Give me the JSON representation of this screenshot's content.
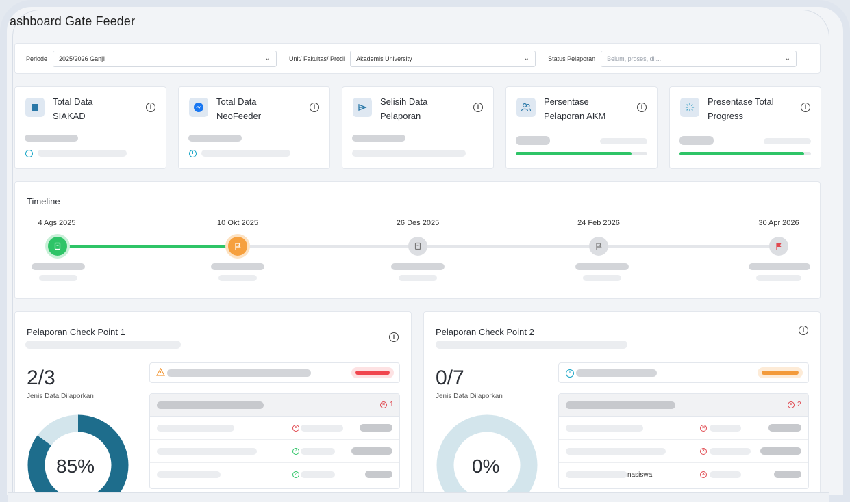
{
  "page": {
    "title": "ashboard Gate Feeder"
  },
  "filters": {
    "periode_label": "Periode",
    "periode_value": "2025/2026 Ganjil",
    "unit_label": "Unit/ Fakultas/ Prodi",
    "unit_value": "Akademis University",
    "status_label": "Status Pelaporan",
    "status_placeholder": "Belum, proses, dll..."
  },
  "stats": [
    {
      "title_line1": "Total Data",
      "title_line2": "SIAKAD",
      "icon": "building-columns-icon"
    },
    {
      "title_line1": "Total Data",
      "title_line2": "NeoFeeder",
      "icon": "neofeeder-logo-icon"
    },
    {
      "title_line1": "Selisih Data",
      "title_line2": "Pelaporan",
      "icon": "send-lines-icon"
    },
    {
      "title_line1": "Persentase",
      "title_line2": "Pelaporan AKM",
      "icon": "users-icon",
      "progress": 0.88
    },
    {
      "title_line1": "Presentase Total",
      "title_line2": "Progress",
      "icon": "loader-icon",
      "progress": 0.95
    }
  ],
  "timeline": {
    "title": "Timeline",
    "nodes": [
      {
        "date": "4 Ags 2025",
        "state": "done",
        "icon": "document-icon"
      },
      {
        "date": "10 Okt 2025",
        "state": "current",
        "icon": "flag-icon"
      },
      {
        "date": "26 Des 2025",
        "state": "pending",
        "icon": "document-icon"
      },
      {
        "date": "24 Feb 2026",
        "state": "pending",
        "icon": "flag-icon"
      },
      {
        "date": "30 Apr 2026",
        "state": "final",
        "icon": "red-flag-icon"
      }
    ]
  },
  "checkpoints": [
    {
      "title": "Pelaporan Check Point 1",
      "ratio": "2/3",
      "subtitle": "Jenis Data Dilaporkan",
      "percent_label": "85%",
      "percent": 0.85,
      "error_count": "1",
      "alert_color": "#f0464e"
    },
    {
      "title": "Pelaporan Check Point 2",
      "ratio": "0/7",
      "subtitle": "Jenis Data Dilaporkan",
      "percent_label": "0%",
      "percent": 0.0,
      "error_count": "2",
      "alert_color": "#f39a3a",
      "row3_text": "nasiswa"
    }
  ],
  "colors": {
    "accent_green": "#2ec467",
    "donut_dark": "#1e6d8c",
    "donut_light": "#d3e5ec"
  }
}
